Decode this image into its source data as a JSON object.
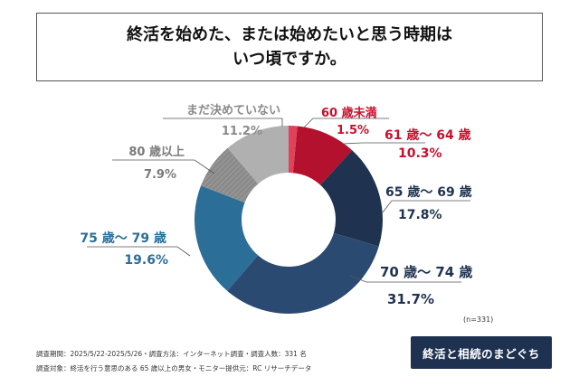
{
  "title": "終活を始めた、または始めたいと思う時期は\nいつ頃ですか。",
  "chart_data": {
    "type": "pie",
    "categories": [
      "60 歳未満",
      "61 歳〜 64 歳",
      "65 歳〜 69 歳",
      "70 歳〜 74 歳",
      "75 歳〜 79 歳",
      "80 歳以上",
      "まだ決めていない"
    ],
    "values": [
      1.5,
      10.3,
      17.8,
      31.7,
      19.6,
      7.9,
      11.2
    ],
    "value_labels": [
      "1.5%",
      "10.3%",
      "17.8%",
      "31.7%",
      "19.6%",
      "7.9%",
      "11.2%"
    ],
    "colors": [
      "#e2415a",
      "#b3112e",
      "#1f3350",
      "#2b4a72",
      "#2b6e98",
      "#8a8a8a",
      "#b0b0b0"
    ],
    "label_colors": [
      "#c8102e",
      "#c8102e",
      "#1f3350",
      "#1f3350",
      "#2b6e98",
      "#7a7a7a",
      "#8a8a8a"
    ],
    "style": "donut"
  },
  "n_label": "(n=331)",
  "footer": {
    "line1": "調査期間：2025/5/22-2025/5/26・調査方法：インターネット調査・調査人数：331 名",
    "line2": "調査対象：終活を行う意思のある 65 歳以上の男女・モニター提供元：RC リサーチデータ"
  },
  "logo_text": "終活と相続のまどぐち"
}
